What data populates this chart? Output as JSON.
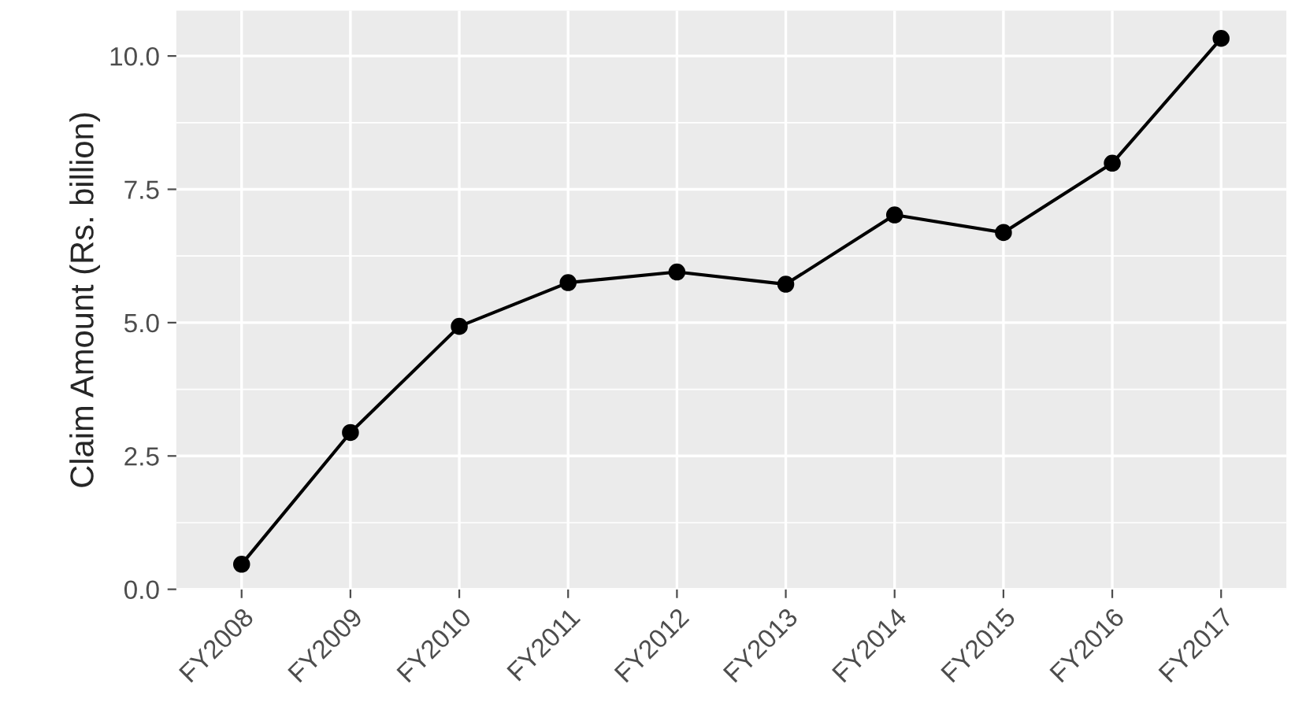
{
  "chart_data": {
    "type": "line",
    "ylabel": "Claim Amount (Rs. billion)",
    "categories": [
      "FY2008",
      "FY2009",
      "FY2010",
      "FY2011",
      "FY2012",
      "FY2013",
      "FY2014",
      "FY2015",
      "FY2016",
      "FY2017"
    ],
    "series": [
      {
        "color": "#000000",
        "values": [
          0.47,
          2.94,
          4.93,
          5.75,
          5.95,
          5.72,
          7.02,
          6.69,
          7.99,
          10.33
        ]
      }
    ],
    "ylim": [
      0,
      10.85
    ],
    "yticks": [
      {
        "value": 0,
        "label": "0.0"
      },
      {
        "value": 2.5,
        "label": "2.5"
      },
      {
        "value": 5,
        "label": "5.0"
      },
      {
        "value": 7.5,
        "label": "7.5"
      },
      {
        "value": 10,
        "label": "10.0"
      }
    ],
    "grid": true,
    "marker": "circle",
    "line_style": "solid",
    "legend": false
  }
}
